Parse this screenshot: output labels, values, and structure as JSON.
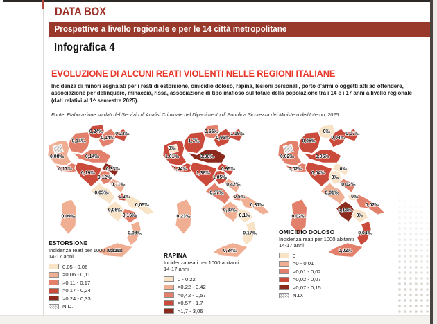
{
  "page": {
    "kicker": "DATA BOX",
    "banner": "Prospettive a livello regionale e per le 14 città metropolitane",
    "infografica": "Infografica 4",
    "title": "EVOLUZIONE DI ALCUNI REATI VIOLENTI NELLE REGIONI ITALIANE",
    "description": "Incidenza di minori segnalati per i reati di estorsione, omicidio doloso, rapina, lesioni personali, porto d'armi o oggetti atti ad offendere, associazione per delinquere, minaccia, rissa, associazione di tipo mafioso sul totale della popolazione tra i 14 e i 17 anni a livello regionale (dati relativi al 1^ semestre 2025).",
    "source": "Fonte: Elaborazione su dati del Servizio di Analisi Criminale del Dipartimento di Pubblica Sicurezza del Ministero dell'Interno, 2025"
  },
  "colors": {
    "banner_red": "#99392b",
    "kicker_red": "#9b3128",
    "title_red": "#e8372a",
    "scale": [
      "#f8e3c6",
      "#f0ae92",
      "#e3806b",
      "#ca4a3b",
      "#8c2a1d"
    ]
  },
  "chart_data": [
    {
      "type": "choropleth",
      "title": "ESTORSIONE",
      "subtitle": "Incidenza reati per 1000 abitanti 14-17 anni",
      "unit": "reati per 1000 abitanti 14-17 anni (‰)",
      "legend": [
        {
          "label": "0,05 - 0,06",
          "bucket": 0
        },
        {
          "label": ">0,06 - 0,11",
          "bucket": 1
        },
        {
          "label": ">0,11 - 0,17",
          "bucket": 2
        },
        {
          "label": ">0,17 - 0,24",
          "bucket": 3
        },
        {
          "label": ">0,24 - 0,33",
          "bucket": 4
        },
        {
          "label": "N.D.",
          "bucket": "nd"
        }
      ],
      "regions": [
        {
          "id": "vda",
          "name": "Valle d'Aosta",
          "label": "",
          "bucket": "nd"
        },
        {
          "id": "piemonte",
          "name": "Piemonte",
          "label": "0,08‰",
          "bucket": 1
        },
        {
          "id": "liguria",
          "name": "Liguria",
          "label": "0,17‰",
          "bucket": 2
        },
        {
          "id": "lombardia",
          "name": "Lombardia",
          "label": "0,14‰",
          "bucket": 2
        },
        {
          "id": "trentino",
          "name": "Trentino-Alto Adige",
          "label": "0,24‰",
          "bucket": 3
        },
        {
          "id": "veneto",
          "name": "Veneto",
          "label": "0,14‰",
          "bucket": 2
        },
        {
          "id": "friuli",
          "name": "Friuli-Venezia Giulia",
          "label": "0,23‰",
          "bucket": 3
        },
        {
          "id": "emilia",
          "name": "Emilia-Romagna",
          "label": "0,14‰",
          "bucket": 2
        },
        {
          "id": "toscana",
          "name": "Toscana",
          "label": "0,19‰",
          "bucket": 3
        },
        {
          "id": "umbria",
          "name": "Umbria",
          "label": "0,12‰",
          "bucket": 2
        },
        {
          "id": "marche",
          "name": "Marche",
          "label": "0,33‰",
          "bucket": 4
        },
        {
          "id": "lazio",
          "name": "Lazio",
          "label": "0,05‰",
          "bucket": 0
        },
        {
          "id": "abruzzo",
          "name": "Abruzzo",
          "label": "0,11‰",
          "bucket": 1
        },
        {
          "id": "molise",
          "name": "Molise",
          "label": "0,2‰",
          "bucket": 3
        },
        {
          "id": "campania",
          "name": "Campania",
          "label": "0,06‰",
          "bucket": 0
        },
        {
          "id": "puglia",
          "name": "Puglia",
          "label": "0,05‰",
          "bucket": 0
        },
        {
          "id": "basilicata",
          "name": "Basilicata",
          "label": "0,16‰",
          "bucket": 2
        },
        {
          "id": "calabria",
          "name": "Calabria",
          "label": "0,08‰",
          "bucket": 1
        },
        {
          "id": "sicilia",
          "name": "Sicilia",
          "label": "0,11‰",
          "bucket": 1
        },
        {
          "id": "sardegna",
          "name": "Sardegna",
          "label": "0,09‰",
          "bucket": 1
        }
      ]
    },
    {
      "type": "choropleth",
      "title": "RAPINA",
      "subtitle": "Incidenza reati per 1000 abitanti 14-17 anni",
      "unit": "reati per 1000 abitanti 14-17 anni (‰)",
      "legend": [
        {
          "label": "0 - 0,22",
          "bucket": 0
        },
        {
          "label": ">0,22 - 0,42",
          "bucket": 1
        },
        {
          "label": ">0,42 - 0,57",
          "bucket": 2
        },
        {
          "label": ">0,57 - 1,7",
          "bucket": 3
        },
        {
          "label": ">1,7 - 3,06",
          "bucket": 4
        }
      ],
      "regions": [
        {
          "id": "vda",
          "name": "Valle d'Aosta",
          "label": "0‰",
          "bucket": 0
        },
        {
          "id": "piemonte",
          "name": "Piemonte",
          "label": "1,01‰",
          "bucket": 3
        },
        {
          "id": "liguria",
          "name": "Liguria",
          "label": "1,44‰",
          "bucket": 3
        },
        {
          "id": "lombardia",
          "name": "Lombardia",
          "label": "1,7‰",
          "bucket": 3
        },
        {
          "id": "trentino",
          "name": "Trentino-Alto Adige",
          "label": "0,55‰",
          "bucket": 2
        },
        {
          "id": "veneto",
          "name": "Veneto",
          "label": "0,95‰",
          "bucket": 3
        },
        {
          "id": "friuli",
          "name": "Friuli-Venezia Giulia",
          "label": "1,19‰",
          "bucket": 3
        },
        {
          "id": "emilia",
          "name": "Emilia-Romagna",
          "label": "3,06‰",
          "bucket": 4
        },
        {
          "id": "toscana",
          "name": "Toscana",
          "label": "1,38‰",
          "bucket": 3
        },
        {
          "id": "umbria",
          "name": "Umbria",
          "label": "1,05‰",
          "bucket": 3
        },
        {
          "id": "marche",
          "name": "Marche",
          "label": "0,95‰",
          "bucket": 3
        },
        {
          "id": "lazio",
          "name": "Lazio",
          "label": "0,57‰",
          "bucket": 2
        },
        {
          "id": "abruzzo",
          "name": "Abruzzo",
          "label": "0,42‰",
          "bucket": 1
        },
        {
          "id": "molise",
          "name": "Molise",
          "label": "0,5‰",
          "bucket": 2
        },
        {
          "id": "campania",
          "name": "Campania",
          "label": "0,37‰",
          "bucket": 1
        },
        {
          "id": "puglia",
          "name": "Puglia",
          "label": "0,31‰",
          "bucket": 1
        },
        {
          "id": "basilicata",
          "name": "Basilicata",
          "label": "0,1‰",
          "bucket": 0
        },
        {
          "id": "calabria",
          "name": "Calabria",
          "label": "0,17‰",
          "bucket": 0
        },
        {
          "id": "sicilia",
          "name": "Sicilia",
          "label": "0,34‰",
          "bucket": 1
        },
        {
          "id": "sardegna",
          "name": "Sardegna",
          "label": "0,23‰",
          "bucket": 1
        }
      ]
    },
    {
      "type": "choropleth",
      "title": "OMICIDIO DOLOSO",
      "subtitle": "Incidenza reati per 1000 abitanti 14-17 anni",
      "unit": "reati per 1000 abitanti 14-17 anni (‰)",
      "legend": [
        {
          "label": "0",
          "bucket": 0
        },
        {
          "label": ">0 - 0,01",
          "bucket": 1
        },
        {
          "label": ">0,01 - 0,02",
          "bucket": 2
        },
        {
          "label": ">0,02 - 0,07",
          "bucket": 3
        },
        {
          "label": ">0,07 - 0,15",
          "bucket": 4
        },
        {
          "label": "N.D.",
          "bucket": "nd"
        }
      ],
      "regions": [
        {
          "id": "vda",
          "name": "Valle d'Aosta",
          "label": "",
          "bucket": "nd"
        },
        {
          "id": "piemonte",
          "name": "Piemonte",
          "label": "0,02‰",
          "bucket": 2
        },
        {
          "id": "liguria",
          "name": "Liguria",
          "label": "0,02‰",
          "bucket": 2
        },
        {
          "id": "lombardia",
          "name": "Lombardia",
          "label": "0,05‰",
          "bucket": 3
        },
        {
          "id": "trentino",
          "name": "Trentino-Alto Adige",
          "label": "0‰",
          "bucket": 0
        },
        {
          "id": "veneto",
          "name": "Veneto",
          "label": "0,04‰",
          "bucket": 3
        },
        {
          "id": "friuli",
          "name": "Friuli-Venezia Giulia",
          "label": "0,07‰",
          "bucket": 3
        },
        {
          "id": "emilia",
          "name": "Emilia-Romagna",
          "label": "0,05‰",
          "bucket": 3
        },
        {
          "id": "toscana",
          "name": "Toscana",
          "label": "0,04‰",
          "bucket": 3
        },
        {
          "id": "umbria",
          "name": "Umbria",
          "label": "0‰",
          "bucket": 0
        },
        {
          "id": "marche",
          "name": "Marche",
          "label": "0‰",
          "bucket": 0
        },
        {
          "id": "lazio",
          "name": "Lazio",
          "label": "0,01‰",
          "bucket": 1
        },
        {
          "id": "abruzzo",
          "name": "Abruzzo",
          "label": "0,02‰",
          "bucket": 2
        },
        {
          "id": "molise",
          "name": "Molise",
          "label": "0‰",
          "bucket": 0
        },
        {
          "id": "campania",
          "name": "Campania",
          "label": "0,13‰",
          "bucket": 4
        },
        {
          "id": "puglia",
          "name": "Puglia",
          "label": "0,02‰",
          "bucket": 2
        },
        {
          "id": "basilicata",
          "name": "Basilicata",
          "label": "0‰",
          "bucket": 0
        },
        {
          "id": "calabria",
          "name": "Calabria",
          "label": "0,04‰",
          "bucket": 3
        },
        {
          "id": "sicilia",
          "name": "Sicilia",
          "label": "0,02‰",
          "bucket": 2
        },
        {
          "id": "sardegna",
          "name": "Sardegna",
          "label": "0,02‰",
          "bucket": 2
        }
      ]
    }
  ]
}
